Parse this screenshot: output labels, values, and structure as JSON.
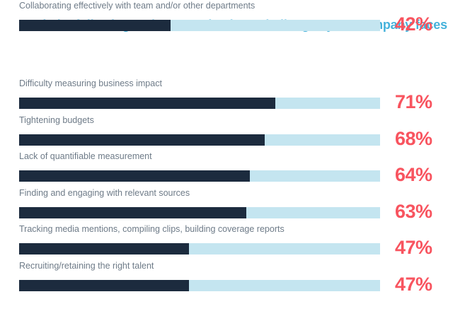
{
  "title": "Rank the following PR/Communications challenges your company faces",
  "colors": {
    "title": "#45B2DB",
    "label": "#6E7B88",
    "bar_fill": "#1C2B3E",
    "bar_track": "#C4E5F0",
    "percent": "#F8545F",
    "background": "#FFFFFF"
  },
  "chart_data": {
    "type": "bar",
    "orientation": "horizontal",
    "title": "Rank the following PR/Communications challenges your company faces",
    "categories": [
      "Difficulty measuring business impact",
      "Tightening budgets",
      "Lack of quantifiable measurement",
      "Finding and engaging with relevant sources",
      "Tracking media mentions, compiling clips, building coverage reports",
      "Recruiting/retaining the right talent",
      "Collaborating effectively with team and/or other departments"
    ],
    "values": [
      71,
      68,
      64,
      63,
      47,
      47,
      42
    ],
    "value_labels": [
      "71%",
      "68%",
      "64%",
      "63%",
      "47%",
      "47%",
      "42%"
    ],
    "unit": "%",
    "xlim": [
      0,
      100
    ],
    "grid": false,
    "legend": false,
    "value_label_position": "right-of-bar"
  }
}
